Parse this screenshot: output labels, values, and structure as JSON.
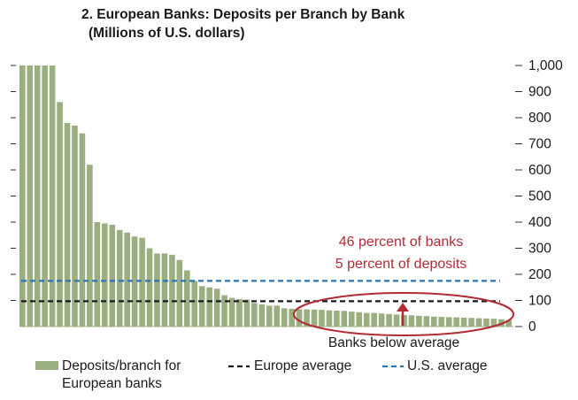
{
  "title_line1": "2. European Banks: Deposits per Branch by Bank",
  "title_line2": "(Millions of U.S. dollars)",
  "chart_data": {
    "type": "bar",
    "title": "2. European Banks: Deposits per Branch by Bank",
    "subtitle": "(Millions of U.S. dollars)",
    "y_axis": {
      "min": 0,
      "max": 1000,
      "step": 100,
      "position": "right",
      "tick_labels": [
        "0",
        "100",
        "200",
        "300",
        "400",
        "500",
        "600",
        "700",
        "800",
        "900",
        "1,000"
      ]
    },
    "series": [
      {
        "name": "Deposits/branch for European banks",
        "color": "#9aae80",
        "values": [
          1000,
          1000,
          1000,
          1000,
          1000,
          860,
          780,
          770,
          740,
          620,
          400,
          395,
          390,
          370,
          360,
          345,
          340,
          300,
          280,
          280,
          275,
          255,
          215,
          175,
          155,
          150,
          145,
          120,
          110,
          105,
          103,
          90,
          85,
          80,
          80,
          70,
          68,
          66,
          66,
          65,
          64,
          62,
          61,
          60,
          57,
          55,
          52,
          52,
          50,
          48,
          46,
          44,
          43,
          41,
          40,
          38,
          37,
          36,
          35,
          34,
          33,
          32,
          31,
          30,
          28,
          25
        ]
      }
    ],
    "reference_lines": [
      {
        "name": "Europe average",
        "value": 97,
        "color": "#1a1a1a",
        "style": "dashed"
      },
      {
        "name": "U.S. average",
        "value": 175,
        "color": "#2b74b8",
        "style": "dashed"
      }
    ],
    "annotations": [
      {
        "text_line1": "46 percent of banks",
        "text_line2": "5 percent of deposits",
        "color": "#b22a35"
      },
      {
        "text": "Banks below average",
        "color": "#1a1a1a"
      }
    ],
    "legend": {
      "placement": "bottom",
      "items": [
        {
          "label_line1": "Deposits/branch for",
          "label_line2": "European banks",
          "symbol": "bar"
        },
        {
          "label": "Europe average",
          "symbol": "dash-black"
        },
        {
          "label": "U.S. average",
          "symbol": "dash-blue"
        }
      ]
    },
    "grid": false
  }
}
